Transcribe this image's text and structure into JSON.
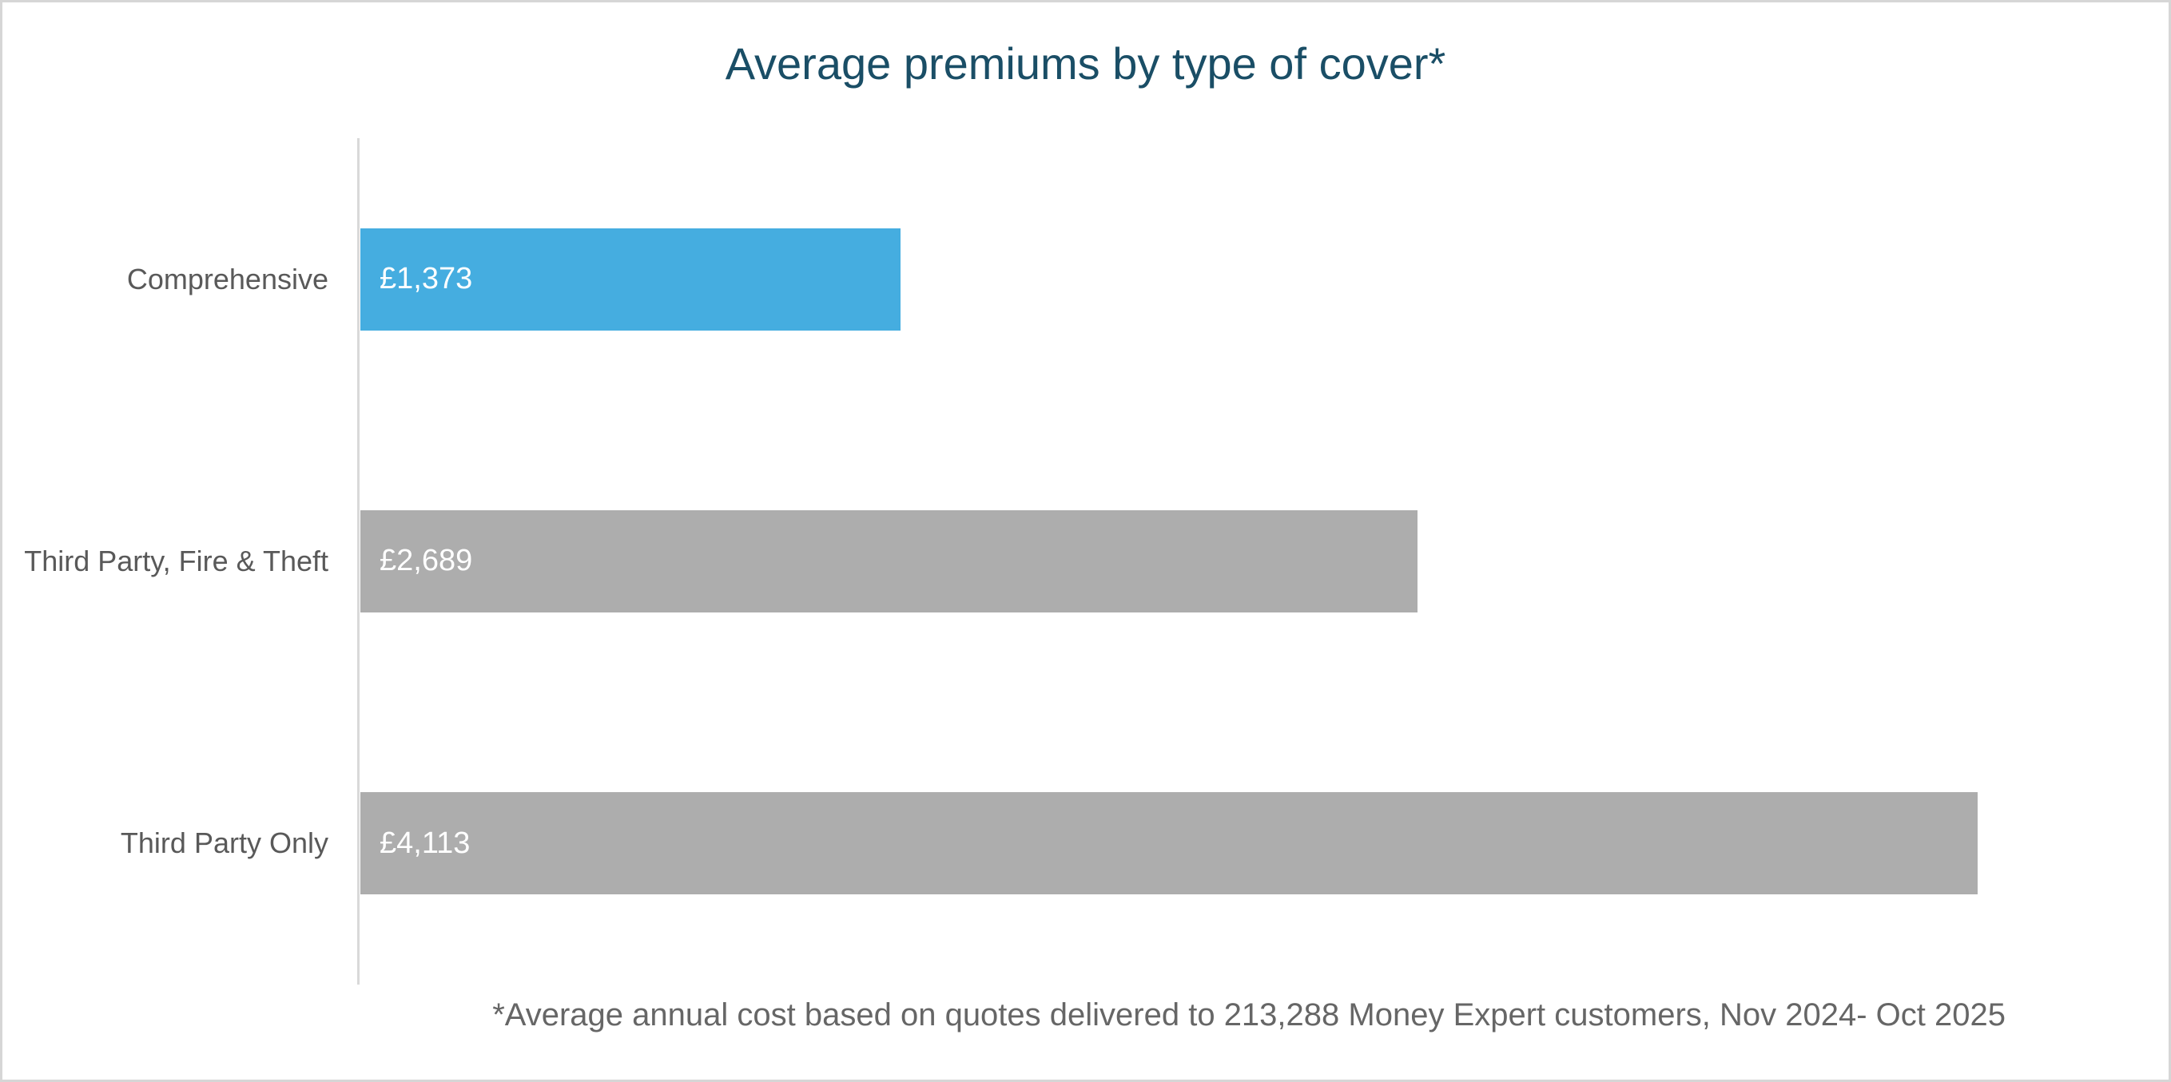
{
  "chart_data": {
    "type": "bar",
    "orientation": "horizontal",
    "title": "Average premiums by type of cover*",
    "categories": [
      "Comprehensive",
      "Third Party, Fire & Theft",
      "Third Party Only"
    ],
    "values": [
      1373,
      2689,
      4113
    ],
    "value_labels": [
      "£1,373",
      "£2,689",
      "£4,113"
    ],
    "bar_colors": [
      "#45ADE0",
      "#ADADAD",
      "#ADADAD"
    ],
    "xlim": [
      0,
      4500
    ],
    "grid": false,
    "legend": false,
    "value_label_position": "inside-start",
    "footnote": "*Average annual cost based on quotes delivered to 213,288 Money Expert customers, Nov 2024- Oct 2025"
  },
  "colors": {
    "background": "#FFFFFF",
    "border": "#D6D6D6",
    "title": "#1A4E66",
    "category_label": "#595959",
    "value_label": "#FFFFFF",
    "footnote": "#666666",
    "axis_line": "#D9D9D9",
    "bar_blue": "#45ADE0",
    "bar_gray": "#ADADAD"
  }
}
